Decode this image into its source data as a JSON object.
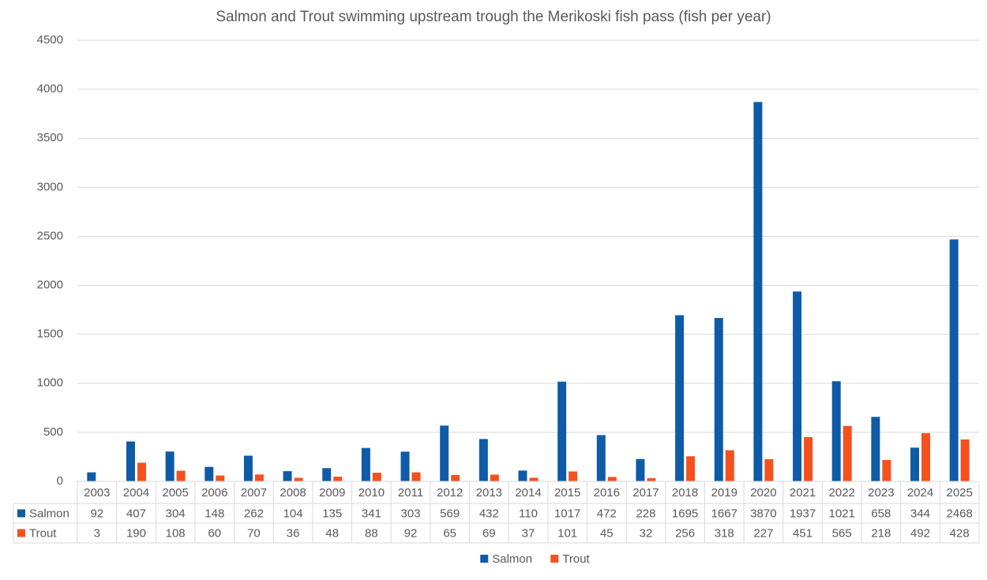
{
  "chart_data": {
    "type": "bar",
    "title": "Salmon and Trout swimming upstream trough the Merikoski fish pass (fish per year)",
    "categories": [
      "2003",
      "2004",
      "2005",
      "2006",
      "2007",
      "2008",
      "2009",
      "2010",
      "2011",
      "2012",
      "2013",
      "2014",
      "2015",
      "2016",
      "2017",
      "2018",
      "2019",
      "2020",
      "2021",
      "2022",
      "2023",
      "2024",
      "2025"
    ],
    "series": [
      {
        "name": "Salmon",
        "color": "#0f5ba8",
        "values": [
          92,
          407,
          304,
          148,
          262,
          104,
          135,
          341,
          303,
          569,
          432,
          110,
          1017,
          472,
          228,
          1695,
          1667,
          3870,
          1937,
          1021,
          658,
          344,
          2468
        ]
      },
      {
        "name": "Trout",
        "color": "#f4511e",
        "values": [
          3,
          190,
          108,
          60,
          70,
          36,
          48,
          88,
          92,
          65,
          69,
          37,
          101,
          45,
          32,
          256,
          318,
          227,
          451,
          565,
          218,
          492,
          428
        ]
      }
    ],
    "ylim": [
      0,
      4500
    ],
    "yticks": [
      0,
      500,
      1000,
      1500,
      2000,
      2500,
      3000,
      3500,
      4000,
      4500
    ],
    "grid": true,
    "data_table": true,
    "legend": "bottom"
  }
}
